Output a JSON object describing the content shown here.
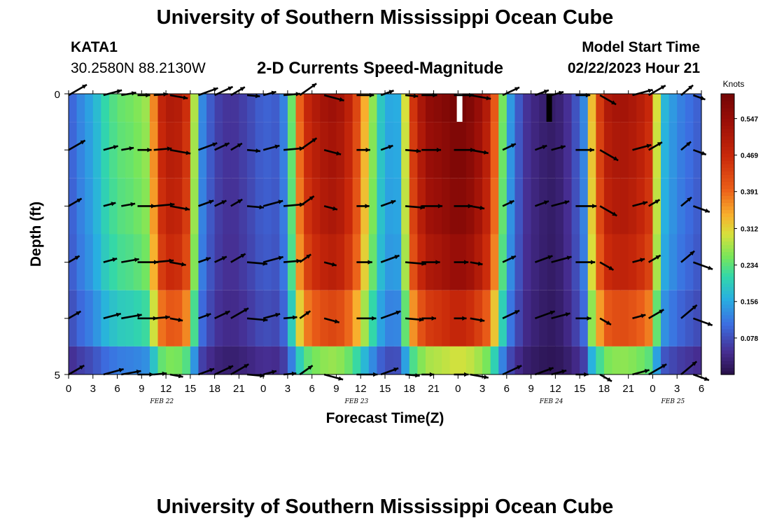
{
  "header": {
    "title": "University of Southern Mississippi Ocean Cube",
    "station": "KATA1",
    "coordinates": "30.2580N  88.2130W",
    "subtitle": "2-D Currents Speed-Magnitude",
    "model_start_label": "Model Start Time",
    "model_start_value": "02/22/2023 Hour 21"
  },
  "footer": {
    "title": "University of Southern Mississippi Ocean Cube"
  },
  "chart_data": {
    "type": "heatmap",
    "title": "2-D Currents Speed-Magnitude",
    "xlabel": "Forecast Time(Z)",
    "ylabel": "Depth (ft)",
    "x_hours": [
      0,
      3,
      6,
      9,
      12,
      15,
      18,
      21,
      24,
      27,
      30,
      33,
      36,
      39,
      42,
      45,
      48,
      51,
      54,
      57,
      60,
      63,
      66,
      69,
      72,
      75,
      78
    ],
    "x_tick_labels": [
      "0",
      "3",
      "6",
      "9",
      "12",
      "15",
      "18",
      "21",
      "0",
      "3",
      "6",
      "9",
      "12",
      "15",
      "18",
      "21",
      "0",
      "3",
      "6",
      "9",
      "12",
      "15",
      "18",
      "21",
      "0",
      "3",
      "6"
    ],
    "date_labels": [
      {
        "label": "FEB 22",
        "hour": 11.5
      },
      {
        "label": "FEB 23",
        "hour": 35.5
      },
      {
        "label": "FEB 24",
        "hour": 59.5
      },
      {
        "label": "FEB 25",
        "hour": 74.5
      }
    ],
    "y_range": [
      0,
      5
    ],
    "y_tick_labels": [
      "0",
      "5"
    ],
    "colorbar": {
      "title": "Knots",
      "ticks": [
        0.547,
        0.469,
        0.391,
        0.312,
        0.234,
        0.156,
        0.078
      ],
      "range": [
        0,
        0.6
      ]
    },
    "speed_profile_by_hour": [
      [
        0,
        0.09
      ],
      [
        1.5,
        0.13
      ],
      [
        3,
        0.16
      ],
      [
        4.5,
        0.21
      ],
      [
        6,
        0.24
      ],
      [
        8,
        0.25
      ],
      [
        9.5,
        0.27
      ],
      [
        10.5,
        0.37
      ],
      [
        11.5,
        0.48
      ],
      [
        13,
        0.52
      ],
      [
        14.5,
        0.46
      ],
      [
        15.5,
        0.28
      ],
      [
        16.5,
        0.13
      ],
      [
        18,
        0.07
      ],
      [
        20,
        0.05
      ],
      [
        22,
        0.07
      ],
      [
        24,
        0.1
      ],
      [
        26,
        0.09
      ],
      [
        27,
        0.16
      ],
      [
        28,
        0.33
      ],
      [
        29,
        0.46
      ],
      [
        31,
        0.52
      ],
      [
        33,
        0.54
      ],
      [
        35,
        0.47
      ],
      [
        37,
        0.3
      ],
      [
        38.5,
        0.19
      ],
      [
        40,
        0.14
      ],
      [
        41,
        0.18
      ],
      [
        42,
        0.42
      ],
      [
        44,
        0.55
      ],
      [
        46,
        0.57
      ],
      [
        48,
        0.6
      ],
      [
        50,
        0.57
      ],
      [
        52,
        0.48
      ],
      [
        53,
        0.33
      ],
      [
        54,
        0.17
      ],
      [
        56,
        0.06
      ],
      [
        58,
        0.03
      ],
      [
        60,
        0.02
      ],
      [
        62,
        0.06
      ],
      [
        63.5,
        0.13
      ],
      [
        64.5,
        0.33
      ],
      [
        66,
        0.5
      ],
      [
        68,
        0.53
      ],
      [
        70,
        0.51
      ],
      [
        71.5,
        0.47
      ],
      [
        72.5,
        0.3
      ],
      [
        73.5,
        0.17
      ],
      [
        75,
        0.13
      ],
      [
        78,
        0.09
      ]
    ],
    "depth_levels": 6,
    "depth_multipliers": [
      1.0,
      0.98,
      0.96,
      0.92,
      0.8,
      0.5
    ],
    "arrow_hours": [
      0,
      4.3,
      6.5,
      8.5,
      10.5,
      12.5,
      16,
      18,
      20,
      22,
      24,
      26.5,
      28.5,
      31.5,
      35.5,
      38.5,
      41.5,
      43.5,
      47.5,
      49.5,
      53.5,
      57.5,
      59.5,
      62.5,
      65.5,
      69.5,
      71.5,
      75.5,
      77
    ],
    "arrow_angles_deg": [
      -30,
      -15,
      -10,
      0,
      -5,
      10,
      -20,
      -25,
      -30,
      5,
      -15,
      -5,
      -35,
      15,
      0,
      -20,
      5,
      0,
      0,
      10,
      -25,
      -20,
      -15,
      0,
      30,
      -15,
      -30,
      -40,
      20
    ],
    "missing_data": [
      {
        "hour": 48.2,
        "depth_level": 0,
        "value": "none"
      }
    ]
  }
}
